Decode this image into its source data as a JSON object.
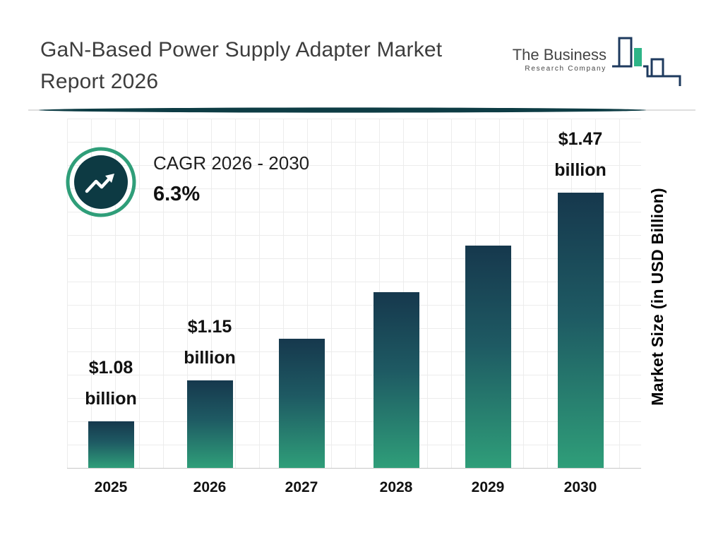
{
  "header": {
    "title_line1": "GaN-Based Power Supply Adapter Market",
    "title_line2": "Report 2026"
  },
  "logo": {
    "line1": "The Business",
    "line2": "Research Company",
    "icon": "bar-chart-logo-icon"
  },
  "cagr_callout": {
    "icon": "trend-up-circle-icon",
    "label": "CAGR 2026 - 2030",
    "value": "6.3%"
  },
  "chart_data": {
    "type": "bar",
    "title": "GaN-Based Power Supply Adapter Market Report 2026",
    "categories": [
      "2025",
      "2026",
      "2027",
      "2028",
      "2029",
      "2030"
    ],
    "values": [
      1.08,
      1.15,
      1.22,
      1.3,
      1.38,
      1.47
    ],
    "value_unit": "USD Billion",
    "ylabel": "Market Size (in USD Billion)",
    "xlabel": "",
    "labeled_bars": [
      {
        "category": "2025",
        "value_text": "$1.08",
        "unit_text": "billion"
      },
      {
        "category": "2026",
        "value_text": "$1.15",
        "unit_text": "billion"
      },
      {
        "category": "2030",
        "value_text": "$1.47",
        "unit_text": "billion"
      }
    ],
    "cagr": {
      "period": "2026 - 2030",
      "value_percent": 6.3
    },
    "grid": true,
    "legend": false,
    "baseline_value": 1.0,
    "colors": {
      "bar_top": "#16384d",
      "bar_bottom": "#2f9e79"
    }
  },
  "colors": {
    "divider_teal": "#0d3c44",
    "ring_green": "#2f9e79",
    "badge_dark": "#0d3a43",
    "text_dark": "#1f1f1f",
    "logo_navy": "#1e3a5e",
    "logo_green": "#2eb487"
  }
}
